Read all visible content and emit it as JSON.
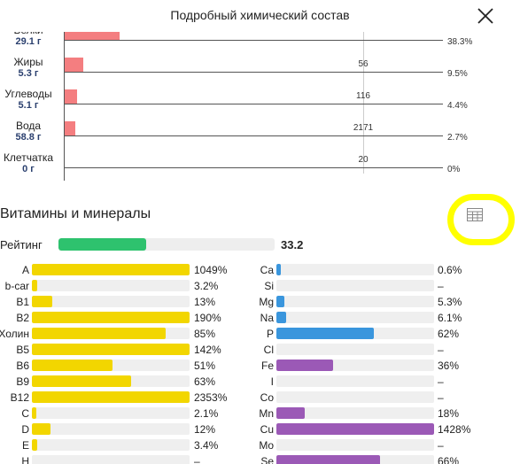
{
  "header": {
    "title": "Подробный химический состав"
  },
  "macros": [
    {
      "name": "Белки",
      "value": "29.1 г",
      "norm": "",
      "percent": "38.3%",
      "fraction": 0.383
    },
    {
      "name": "Жиры",
      "value": "5.3 г",
      "norm": "56",
      "percent": "9.5%",
      "fraction": 0.095
    },
    {
      "name": "Углеводы",
      "value": "5.1 г",
      "norm": "116",
      "percent": "4.4%",
      "fraction": 0.044
    },
    {
      "name": "Вода",
      "value": "58.8 г",
      "norm": "2171",
      "percent": "2.7%",
      "fraction": 0.027
    },
    {
      "name": "Клетчатка",
      "value": "0 г",
      "norm": "20",
      "percent": "0%",
      "fraction": 0
    }
  ],
  "vitamins_section": {
    "title": "Витамины и минералы",
    "rating_label": "Рейтинг",
    "rating_value": "33.2",
    "rating_fraction": 0.332
  },
  "colors": {
    "macro_bar": "#f47e80",
    "vitamin": "#f2d600",
    "macro_mineral": "#3a96dd",
    "micro_mineral": "#9b59b6",
    "rating": "#2ec26e",
    "highlight": "#ffff00"
  },
  "vitamins": [
    {
      "name": "A",
      "percent": "1049%",
      "fraction": 1.0
    },
    {
      "name": "b-car",
      "percent": "3.2%",
      "fraction": 0.032
    },
    {
      "name": "B1",
      "percent": "13%",
      "fraction": 0.13
    },
    {
      "name": "B2",
      "percent": "190%",
      "fraction": 1.0
    },
    {
      "name": "Холин",
      "percent": "85%",
      "fraction": 0.85
    },
    {
      "name": "B5",
      "percent": "142%",
      "fraction": 1.0
    },
    {
      "name": "B6",
      "percent": "51%",
      "fraction": 0.51
    },
    {
      "name": "B9",
      "percent": "63%",
      "fraction": 0.63
    },
    {
      "name": "B12",
      "percent": "2353%",
      "fraction": 1.0
    },
    {
      "name": "C",
      "percent": "2.1%",
      "fraction": 0.021
    },
    {
      "name": "D",
      "percent": "12%",
      "fraction": 0.12
    },
    {
      "name": "E",
      "percent": "3.4%",
      "fraction": 0.034
    },
    {
      "name": "H",
      "percent": "–",
      "fraction": 0
    }
  ],
  "minerals": [
    {
      "name": "Ca",
      "percent": "0.6%",
      "fraction": 0.006,
      "kind": "macro"
    },
    {
      "name": "Si",
      "percent": "–",
      "fraction": 0,
      "kind": "macro"
    },
    {
      "name": "Mg",
      "percent": "5.3%",
      "fraction": 0.053,
      "kind": "macro"
    },
    {
      "name": "Na",
      "percent": "6.1%",
      "fraction": 0.061,
      "kind": "macro"
    },
    {
      "name": "P",
      "percent": "62%",
      "fraction": 0.62,
      "kind": "macro"
    },
    {
      "name": "Cl",
      "percent": "–",
      "fraction": 0,
      "kind": "macro"
    },
    {
      "name": "Fe",
      "percent": "36%",
      "fraction": 0.36,
      "kind": "micro"
    },
    {
      "name": "I",
      "percent": "–",
      "fraction": 0,
      "kind": "micro"
    },
    {
      "name": "Co",
      "percent": "–",
      "fraction": 0,
      "kind": "micro"
    },
    {
      "name": "Mn",
      "percent": "18%",
      "fraction": 0.18,
      "kind": "micro"
    },
    {
      "name": "Cu",
      "percent": "1428%",
      "fraction": 1.0,
      "kind": "micro"
    },
    {
      "name": "Mo",
      "percent": "–",
      "fraction": 0,
      "kind": "micro"
    },
    {
      "name": "Se",
      "percent": "66%",
      "fraction": 0.66,
      "kind": "micro"
    }
  ]
}
